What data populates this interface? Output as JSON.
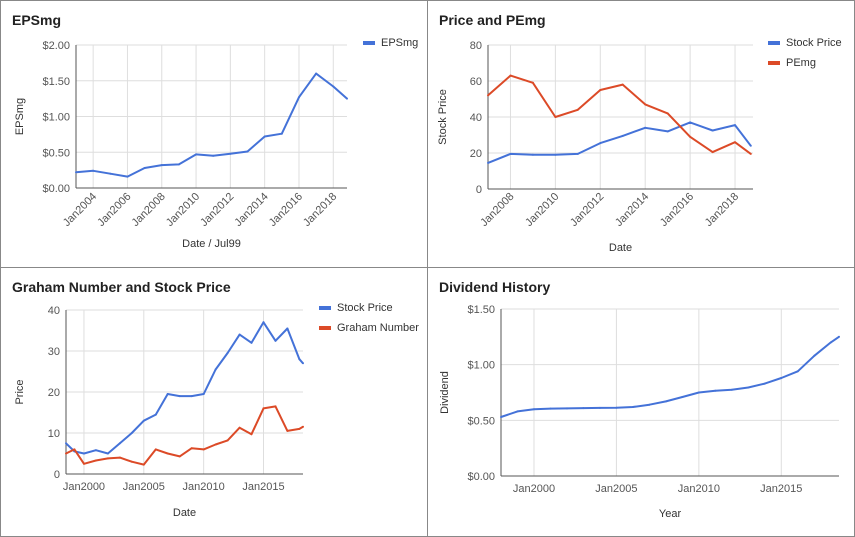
{
  "colors": {
    "blue": "#4472d8",
    "red": "#dc4a27",
    "grid": "#dedede",
    "axis": "#555555",
    "text": "#555555"
  },
  "panels": [
    {
      "title": "EPSmg",
      "chart_data": {
        "type": "line",
        "title": "EPSmg",
        "xlabel": "Date / Jul99",
        "ylabel": "EPSmg",
        "xlim": [
          2003,
          2018.8
        ],
        "ylim": [
          0,
          2
        ],
        "x_ticks": [
          2004,
          2006,
          2008,
          2010,
          2012,
          2014,
          2016,
          2018
        ],
        "x_tick_labels": [
          "Jan2004",
          "Jan2006",
          "Jan2008",
          "Jan2010",
          "Jan2012",
          "Jan2014",
          "Jan2016",
          "Jan2018"
        ],
        "y_ticks": [
          0,
          0.5,
          1,
          1.5,
          2
        ],
        "y_tick_labels": [
          "$0.00",
          "$0.50",
          "$1.00",
          "$1.50",
          "$2.00"
        ],
        "legend_position": "right",
        "series": [
          {
            "name": "EPSmg",
            "color": "#4472d8",
            "x": [
              2003,
              2004,
              2005,
              2006,
              2007,
              2008,
              2009,
              2010,
              2011,
              2012,
              2013,
              2014,
              2015,
              2016,
              2017,
              2018,
              2018.8
            ],
            "y": [
              0.22,
              0.24,
              0.2,
              0.16,
              0.28,
              0.32,
              0.33,
              0.47,
              0.45,
              0.48,
              0.51,
              0.72,
              0.76,
              1.27,
              1.6,
              1.42,
              1.25
            ]
          }
        ]
      }
    },
    {
      "title": "Price and PEmg",
      "chart_data": {
        "type": "line",
        "title": "Price and PEmg",
        "xlabel": "Date",
        "ylabel": "Stock Price",
        "xlim": [
          2007,
          2018.8
        ],
        "ylim": [
          0,
          80
        ],
        "x_ticks": [
          2008,
          2010,
          2012,
          2014,
          2016,
          2018
        ],
        "x_tick_labels": [
          "Jan2008",
          "Jan2010",
          "Jan2012",
          "Jan2014",
          "Jan2016",
          "Jan2018"
        ],
        "y_ticks": [
          0,
          20,
          40,
          60,
          80
        ],
        "y_tick_labels": [
          "0",
          "20",
          "40",
          "60",
          "80"
        ],
        "legend_position": "right",
        "series": [
          {
            "name": "Stock Price",
            "color": "#4472d8",
            "x": [
              2007,
              2008,
              2009,
              2010,
              2011,
              2012,
              2013,
              2014,
              2015,
              2016,
              2017,
              2018,
              2018.7
            ],
            "y": [
              14.5,
              19.5,
              19,
              19,
              19.5,
              25.5,
              29.5,
              34,
              32,
              37,
              32.5,
              35.5,
              24
            ]
          },
          {
            "name": "PEmg",
            "color": "#dc4a27",
            "x": [
              2007,
              2008,
              2009,
              2010,
              2011,
              2012,
              2013,
              2014,
              2015,
              2016,
              2017,
              2018,
              2018.7
            ],
            "y": [
              52,
              63,
              59,
              40,
              44,
              55,
              58,
              47,
              42,
              29,
              20.5,
              26,
              19.5
            ]
          }
        ]
      }
    },
    {
      "title": "Graham Number and Stock Price",
      "chart_data": {
        "type": "line",
        "title": "Graham Number and Stock Price",
        "xlabel": "Date",
        "ylabel": "Price",
        "xlim": [
          1998.5,
          2018.3
        ],
        "ylim": [
          0,
          40
        ],
        "x_ticks": [
          2000,
          2005,
          2010,
          2015
        ],
        "x_tick_labels": [
          "Jan2000",
          "Jan2005",
          "Jan2010",
          "Jan2015"
        ],
        "y_ticks": [
          0,
          10,
          20,
          30,
          40
        ],
        "y_tick_labels": [
          "0",
          "10",
          "20",
          "30",
          "40"
        ],
        "legend_position": "right",
        "series": [
          {
            "name": "Stock Price",
            "color": "#4472d8",
            "x": [
              1998.5,
              1999.2,
              2000,
              2001,
              2002,
              2003,
              2004,
              2005,
              2006,
              2007,
              2008,
              2009,
              2010,
              2011,
              2012,
              2013,
              2014,
              2015,
              2016,
              2017,
              2018,
              2018.3
            ],
            "y": [
              7.5,
              5.5,
              5,
              5.8,
              5,
              7.5,
              10,
              13,
              14.5,
              19.5,
              19,
              19,
              19.5,
              25.5,
              29.5,
              34,
              32,
              37,
              32.5,
              35.5,
              28,
              27
            ]
          },
          {
            "name": "Graham Number",
            "color": "#dc4a27",
            "x": [
              1998.5,
              1999.2,
              2000,
              2001,
              2002,
              2003,
              2004,
              2005,
              2006,
              2007,
              2008,
              2009,
              2010,
              2011,
              2012,
              2013,
              2014,
              2015,
              2016,
              2017,
              2018,
              2018.3
            ],
            "y": [
              5,
              6,
              2.5,
              3.3,
              3.8,
              4,
              3,
              2.3,
              6,
              5,
              4.3,
              6.3,
              6,
              7.2,
              8.2,
              11.3,
              9.7,
              16,
              16.5,
              10.5,
              11,
              11.5
            ]
          }
        ]
      }
    },
    {
      "title": "Dividend History",
      "chart_data": {
        "type": "line",
        "title": "Dividend History",
        "xlabel": "Year",
        "ylabel": "Dividend",
        "xlim": [
          1998,
          2018.5
        ],
        "ylim": [
          0,
          1.5
        ],
        "x_ticks": [
          2000,
          2005,
          2010,
          2015
        ],
        "x_tick_labels": [
          "Jan2000",
          "Jan2005",
          "Jan2010",
          "Jan2015"
        ],
        "y_ticks": [
          0,
          0.5,
          1,
          1.5
        ],
        "y_tick_labels": [
          "$0.00",
          "$0.50",
          "$1.00",
          "$1.50"
        ],
        "legend_position": "none",
        "series": [
          {
            "name": "",
            "color": "#4472d8",
            "x": [
              1998,
              1999,
              2000,
              2001,
              2002,
              2003,
              2004,
              2005,
              2006,
              2007,
              2008,
              2009,
              2010,
              2011,
              2012,
              2013,
              2014,
              2015,
              2016,
              2017,
              2018,
              2018.5
            ],
            "y": [
              0.53,
              0.58,
              0.6,
              0.605,
              0.607,
              0.61,
              0.612,
              0.613,
              0.62,
              0.64,
              0.67,
              0.71,
              0.75,
              0.765,
              0.775,
              0.795,
              0.83,
              0.88,
              0.94,
              1.08,
              1.2,
              1.25
            ]
          }
        ]
      }
    }
  ]
}
